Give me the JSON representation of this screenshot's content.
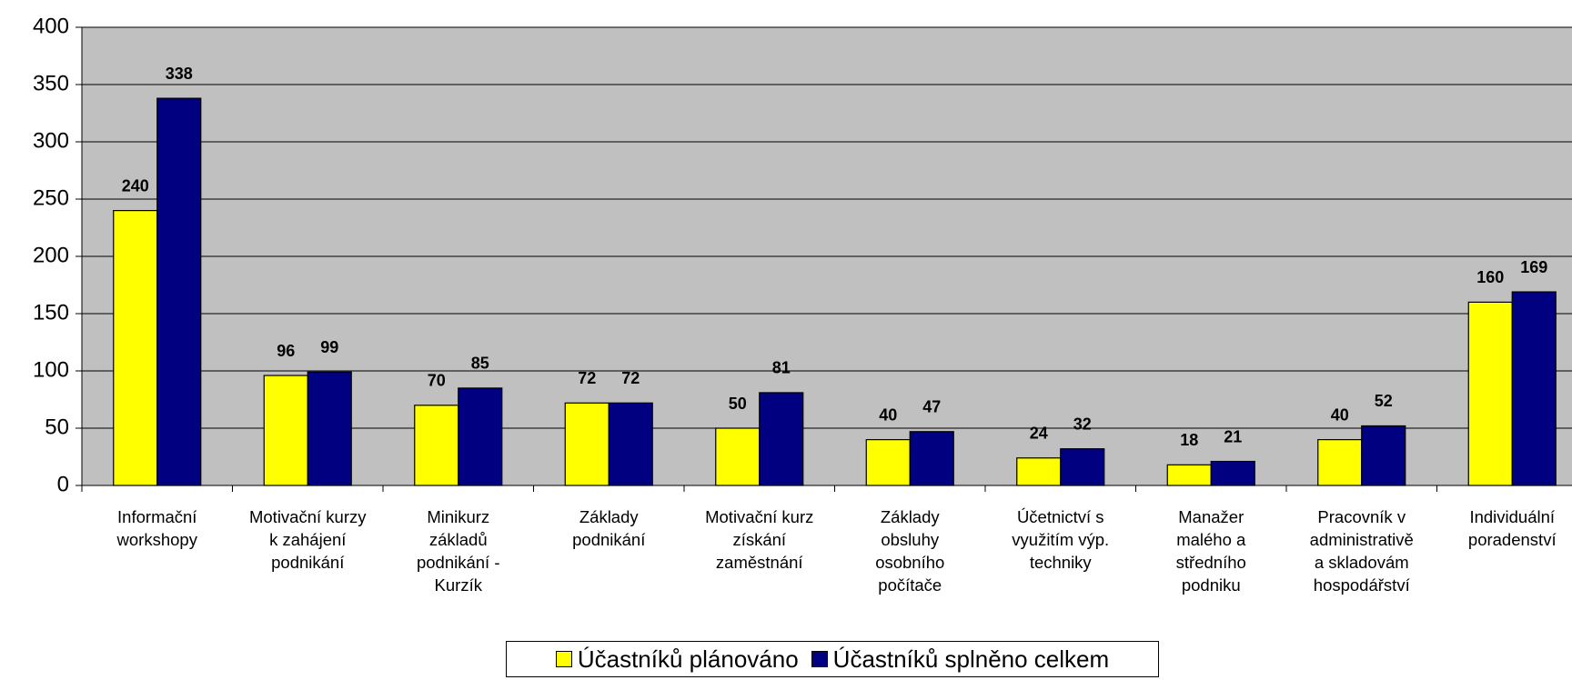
{
  "chart_data": {
    "type": "bar",
    "categories": [
      "Informační\nworkshopy",
      "Motivační kurzy\nk zahájení\npodnikání",
      "Minikurz\nzákladů\npodnikání -\nKurzík",
      "Základy\npodnikání",
      "Motivační kurz\nzískání\nzaměstnání",
      "Základy\nobsluhy\nosobního\npočítače",
      "Účetnictví s\nvyužitím výp.\ntechniky",
      "Manažer\nmalého a\nstředního\npodniku",
      "Pracovník v\nadministrativě\na skladovám\nhospodářství",
      "Individuální\nporadenství"
    ],
    "series": [
      {
        "name": "Účastníků plánováno",
        "color": "#ffff00",
        "values": [
          240,
          96,
          70,
          72,
          50,
          40,
          24,
          18,
          40,
          160
        ]
      },
      {
        "name": "Účastníků splněno celkem",
        "color": "#000080",
        "values": [
          338,
          99,
          85,
          72,
          81,
          47,
          32,
          21,
          52,
          169
        ]
      }
    ],
    "ylim": [
      0,
      400
    ],
    "yticks": [
      0,
      50,
      100,
      150,
      200,
      250,
      300,
      350,
      400
    ],
    "grid": true,
    "legend": "bottom",
    "plot_background": "#c0c0c0"
  }
}
